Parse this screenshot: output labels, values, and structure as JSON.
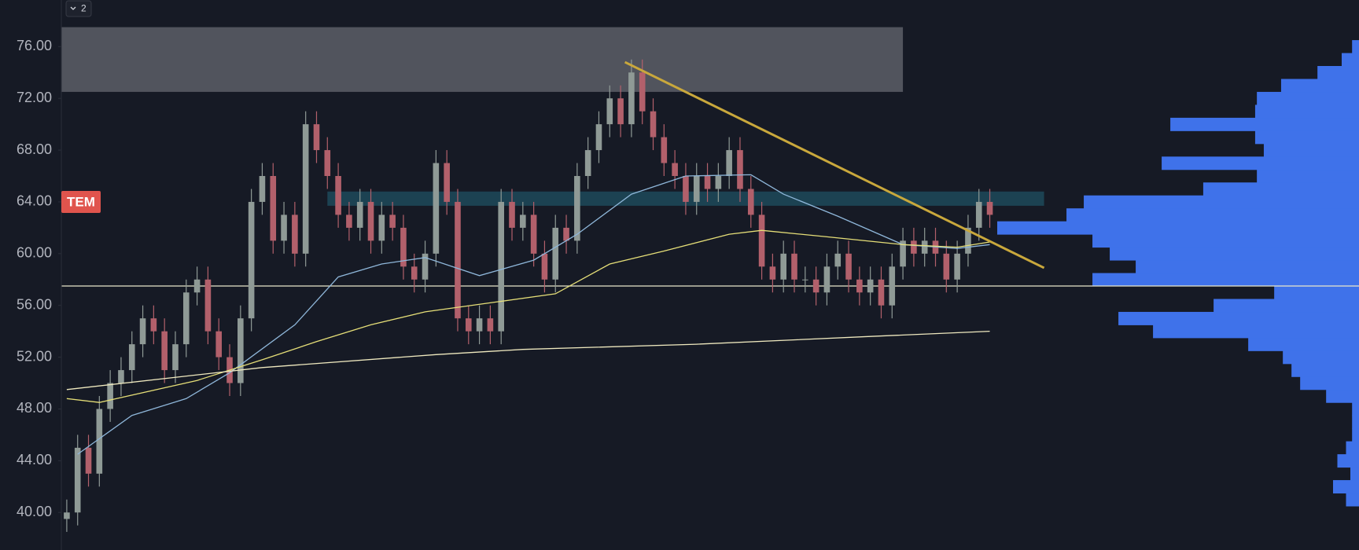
{
  "ui": {
    "badge": 2
  },
  "chart_data": {
    "type": "candlestick",
    "symbol_label": "TEM",
    "ylim": [
      37.1,
      79.6
    ],
    "xlim": [
      -0.5,
      119
    ],
    "yticks": [
      {
        "value": 40,
        "label": "40.00"
      },
      {
        "value": 44,
        "label": "44.00"
      },
      {
        "value": 48,
        "label": "48.00"
      },
      {
        "value": 52,
        "label": "52.00"
      },
      {
        "value": 56,
        "label": "56.00"
      },
      {
        "value": 60,
        "label": "60.00"
      },
      {
        "value": 64,
        "label": "64.00"
      },
      {
        "value": 68,
        "label": "68.00"
      },
      {
        "value": 72,
        "label": "72.00"
      },
      {
        "value": 76,
        "label": "76.00"
      }
    ],
    "up_color": "#8f9a96",
    "down_color": "#b2606b",
    "open": [
      39.5,
      40,
      45,
      43,
      48,
      50,
      51,
      53,
      55,
      54,
      51,
      53,
      57,
      58,
      54,
      52,
      50,
      55,
      64,
      66,
      61,
      63,
      60,
      70,
      68,
      66,
      63,
      62,
      64,
      61,
      63,
      62,
      59,
      58,
      60,
      67,
      64,
      55,
      54,
      55,
      54,
      64,
      62,
      63,
      60,
      58,
      62,
      61,
      66,
      68,
      70,
      72,
      70,
      74,
      71,
      69,
      67,
      66,
      64,
      66,
      65,
      66,
      68,
      65,
      63,
      59,
      58,
      60,
      58,
      58,
      57,
      59,
      60,
      58,
      57,
      58,
      56,
      59,
      61,
      60,
      61,
      60,
      58,
      60,
      62,
      64
    ],
    "high": [
      41,
      46,
      46,
      49,
      51,
      52,
      54,
      56,
      56,
      55,
      54,
      58,
      59,
      59,
      55,
      53,
      56,
      65,
      67,
      67,
      64,
      64,
      71,
      71,
      69,
      67,
      64,
      65,
      65,
      64,
      64,
      63,
      60,
      61,
      68,
      68,
      65,
      56,
      56,
      56,
      65,
      65,
      64,
      64,
      61,
      63,
      63,
      67,
      69,
      71,
      73,
      73,
      75,
      75,
      72,
      70,
      68,
      67,
      67,
      67,
      67,
      69,
      69,
      66,
      64,
      60,
      61,
      61,
      59,
      59,
      60,
      61,
      61,
      59,
      59,
      59,
      60,
      62,
      62,
      62,
      62,
      61,
      61,
      63,
      65,
      65
    ],
    "low": [
      38.5,
      39,
      42,
      42,
      47,
      49,
      50,
      52,
      53,
      50,
      50,
      52,
      56,
      53,
      51,
      49,
      49,
      54,
      63,
      60,
      60,
      59,
      59,
      67,
      65,
      62,
      61,
      61,
      60,
      60,
      61,
      58,
      57,
      57,
      59,
      63,
      54,
      53,
      53,
      53,
      53,
      61,
      61,
      59,
      57,
      57,
      60,
      60,
      65,
      67,
      69,
      69,
      69,
      70,
      68,
      66,
      65,
      63,
      63,
      64,
      64,
      65,
      64,
      62,
      58,
      57,
      57,
      57,
      57,
      56,
      56,
      58,
      57,
      56,
      56,
      55,
      55,
      58,
      59,
      59,
      59,
      57,
      57,
      59,
      61,
      62
    ],
    "close": [
      40,
      45,
      43,
      48,
      50,
      51,
      53,
      55,
      54,
      51,
      53,
      57,
      58,
      54,
      52,
      50,
      55,
      64,
      66,
      61,
      63,
      60,
      70,
      68,
      66,
      63,
      62,
      64,
      61,
      63,
      62,
      59,
      58,
      60,
      67,
      64,
      55,
      54,
      55,
      54,
      64,
      62,
      63,
      60,
      58,
      62,
      61,
      66,
      68,
      70,
      72,
      70,
      74,
      71,
      69,
      67,
      66,
      64,
      66,
      65,
      66,
      68,
      65,
      63,
      59,
      58,
      60,
      58,
      58,
      57,
      59,
      60,
      58,
      57,
      58,
      56,
      59,
      61,
      60,
      61,
      60,
      58,
      60,
      62,
      64,
      63
    ],
    "lines": [
      {
        "color": "#8fb7da",
        "x": [
          1,
          6,
          11,
          15,
          21,
          25,
          29,
          33,
          38,
          43,
          47,
          52,
          57,
          63,
          66,
          71,
          77,
          82,
          85
        ],
        "values": [
          44.5,
          47.5,
          48.8,
          50.8,
          54.5,
          58.2,
          59.2,
          59.7,
          58.3,
          59.5,
          61.5,
          64.6,
          66.0,
          66.1,
          64.6,
          62.9,
          60.7,
          60.4,
          60.7
        ]
      },
      {
        "color": "#e6df78",
        "x": [
          0,
          3,
          12,
          18,
          23,
          28,
          33,
          39,
          45,
          50,
          55,
          61,
          64,
          70,
          77,
          82,
          85
        ],
        "values": [
          48.8,
          48.5,
          50.2,
          51.8,
          53.2,
          54.5,
          55.5,
          56.2,
          56.9,
          59.2,
          60.2,
          61.5,
          61.8,
          61.3,
          60.7,
          60.5,
          60.9
        ]
      },
      {
        "color": "#efe9bf",
        "x": [
          0,
          18,
          34,
          42,
          58,
          74,
          85
        ],
        "values": [
          49.5,
          51.2,
          52.2,
          52.6,
          53.0,
          53.6,
          54.0
        ]
      }
    ],
    "zones": [
      {
        "color": "#5c5f67",
        "x": [
          -0.5,
          77
        ],
        "from": 72.5,
        "to": 77.5
      },
      {
        "color": "#1d4a5a",
        "x": [
          24,
          90
        ],
        "from": 63.7,
        "to": 64.8
      }
    ],
    "trendline": {
      "color": "#c9a83c",
      "x": [
        51.4,
        90
      ],
      "values": [
        74.8,
        58.9
      ]
    },
    "hline": {
      "color": "#e9e8cc",
      "value": 57.5
    },
    "volume_profile": {
      "color": "#3f72ea",
      "prices": [
        41,
        42,
        43,
        44,
        45,
        46,
        47,
        48,
        49,
        50,
        51,
        52,
        53,
        54,
        55,
        56,
        57,
        58,
        59,
        60,
        61,
        62,
        63,
        64,
        65,
        66,
        67,
        68,
        69,
        70,
        71,
        72,
        73,
        74,
        75,
        76
      ],
      "values": [
        15,
        30,
        10,
        25,
        15,
        8,
        8,
        8,
        38,
        68,
        78,
        88,
        128,
        238,
        278,
        168,
        98,
        308,
        258,
        288,
        308,
        418,
        338,
        318,
        180,
        118,
        228,
        110,
        120,
        218,
        120,
        118,
        90,
        48,
        20,
        8
      ]
    }
  }
}
